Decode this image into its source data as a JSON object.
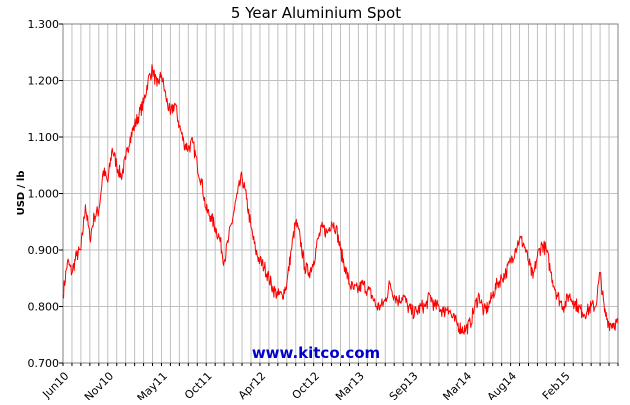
{
  "chart_data": {
    "type": "line",
    "title": "5 Year Aluminium Spot",
    "xlabel": "",
    "ylabel": "USD / lb",
    "ylim": [
      0.7,
      1.3
    ],
    "y_ticks": [
      0.7,
      0.8,
      0.9,
      1.0,
      1.1,
      1.2,
      1.3
    ],
    "y_tick_labels": [
      "0.700",
      "0.800",
      "0.900",
      "1.000",
      "1.100",
      "1.200",
      "1.300"
    ],
    "x_tick_labels": [
      "Jun10",
      "Nov10",
      "May11",
      "Oct11",
      "Apr12",
      "Oct12",
      "Mar13",
      "Sep13",
      "Mar14",
      "Aug14",
      "Feb15"
    ],
    "x_tick_index": [
      0,
      5,
      11,
      16,
      22,
      28,
      33,
      39,
      45,
      50,
      56
    ],
    "x_months_total": 62,
    "grid": true,
    "legend": "none",
    "watermark": "www.kitco.com",
    "colors": {
      "series": "#ff0000",
      "grid": "#c0c0c0",
      "watermark": "#0000cc"
    },
    "series": [
      {
        "name": "",
        "x": [
          0,
          0.5,
          1,
          1.5,
          2,
          2.5,
          3,
          3.5,
          4,
          4.5,
          5,
          5.5,
          6,
          6.5,
          7,
          7.5,
          8,
          8.5,
          9,
          9.5,
          10,
          10.5,
          11,
          11.5,
          12,
          12.5,
          13,
          13.5,
          14,
          14.5,
          15,
          15.5,
          16,
          16.5,
          17,
          17.5,
          18,
          18.5,
          19,
          19.5,
          20,
          20.5,
          21,
          21.5,
          22,
          22.5,
          23,
          23.5,
          24,
          24.5,
          25,
          25.5,
          26,
          26.5,
          27,
          27.5,
          28,
          28.5,
          29,
          29.5,
          30,
          30.5,
          31,
          31.5,
          32,
          32.5,
          33,
          33.5,
          34,
          34.5,
          35,
          35.5,
          36,
          36.5,
          37,
          37.5,
          38,
          38.5,
          39,
          39.5,
          40,
          40.5,
          41,
          41.5,
          42,
          42.5,
          43,
          43.5,
          44,
          44.5,
          45,
          45.5,
          46,
          46.5,
          47,
          47.5,
          48,
          48.5,
          49,
          49.5,
          50,
          50.5,
          51,
          51.5,
          52,
          52.5,
          53,
          53.5,
          54,
          54.5,
          55,
          55.5,
          56,
          56.5,
          57,
          57.5,
          58,
          58.5,
          59,
          59.5,
          60,
          60.5,
          61,
          61.5,
          62
        ],
        "values": [
          0.82,
          0.88,
          0.86,
          0.89,
          0.9,
          0.98,
          0.92,
          0.96,
          0.97,
          1.04,
          1.02,
          1.08,
          1.05,
          1.03,
          1.06,
          1.1,
          1.12,
          1.14,
          1.16,
          1.2,
          1.22,
          1.19,
          1.21,
          1.17,
          1.14,
          1.16,
          1.12,
          1.09,
          1.08,
          1.09,
          1.05,
          1.02,
          0.97,
          0.96,
          0.94,
          0.92,
          0.88,
          0.92,
          0.96,
          1.0,
          1.03,
          0.99,
          0.94,
          0.9,
          0.88,
          0.87,
          0.85,
          0.83,
          0.82,
          0.82,
          0.84,
          0.9,
          0.95,
          0.92,
          0.87,
          0.86,
          0.88,
          0.92,
          0.94,
          0.93,
          0.95,
          0.94,
          0.9,
          0.87,
          0.84,
          0.83,
          0.83,
          0.84,
          0.83,
          0.82,
          0.8,
          0.8,
          0.81,
          0.84,
          0.82,
          0.81,
          0.82,
          0.8,
          0.79,
          0.79,
          0.8,
          0.8,
          0.82,
          0.8,
          0.8,
          0.79,
          0.8,
          0.78,
          0.77,
          0.76,
          0.76,
          0.77,
          0.8,
          0.82,
          0.79,
          0.8,
          0.82,
          0.84,
          0.85,
          0.86,
          0.88,
          0.9,
          0.92,
          0.91,
          0.88,
          0.85,
          0.89,
          0.91,
          0.9,
          0.86,
          0.83,
          0.81,
          0.8,
          0.82,
          0.81,
          0.8,
          0.79,
          0.79,
          0.8,
          0.8,
          0.86,
          0.79,
          0.77,
          0.77,
          0.77
        ]
      }
    ]
  }
}
